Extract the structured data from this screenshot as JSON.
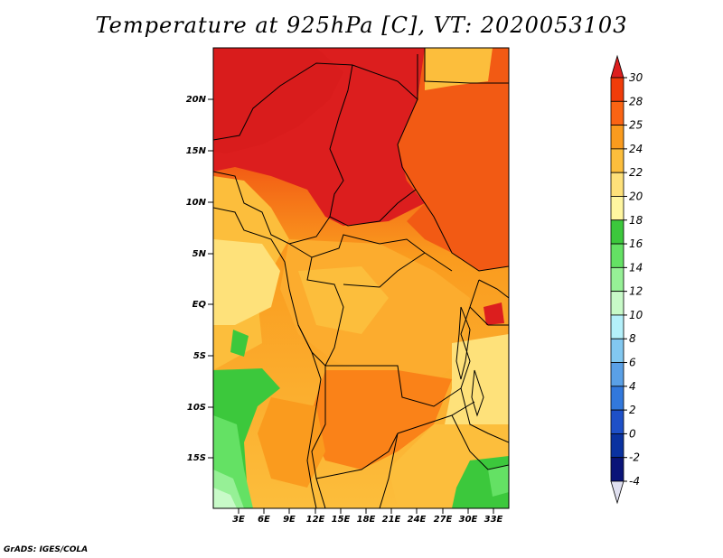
{
  "title": "Temperature at 925hPa [C], VT: 2020053103",
  "credit": "GrADS: IGES/COLA",
  "map": {
    "lat_ticks": [
      "20N",
      "15N",
      "10N",
      "5N",
      "EQ",
      "5S",
      "10S",
      "15S"
    ],
    "lon_ticks": [
      "3E",
      "6E",
      "9E",
      "12E",
      "15E",
      "18E",
      "21E",
      "24E",
      "27E",
      "30E",
      "33E"
    ]
  },
  "colorbar": {
    "labels": [
      "30",
      "28",
      "25",
      "24",
      "22",
      "20",
      "18",
      "16",
      "14",
      "12",
      "10",
      "8",
      "6",
      "4",
      "2",
      "0",
      "-2",
      "-4"
    ],
    "colors": [
      "#dc1e1e",
      "#f03c0a",
      "#fa6414",
      "#fa9b1e",
      "#fcbe3c",
      "#fee17a",
      "#fff6a0",
      "#3cc83c",
      "#64e164",
      "#96f096",
      "#c8fac8",
      "#b4f0fa",
      "#82c8f0",
      "#5aa0e6",
      "#3278dc",
      "#1e50c8",
      "#0a32a0",
      "#0a1478",
      "#e0e0f0"
    ]
  }
}
